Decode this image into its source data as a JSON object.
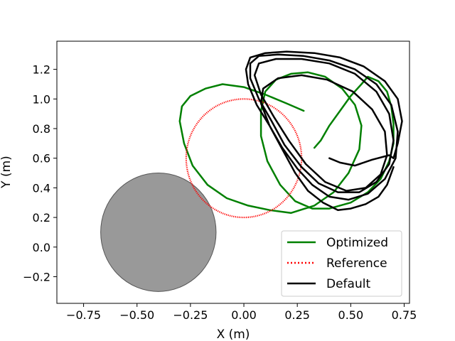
{
  "chart_data": {
    "type": "line",
    "xlabel": "X (m)",
    "ylabel": "Y (m)",
    "xlim": [
      -0.875,
      0.775
    ],
    "ylim": [
      -0.38,
      1.39
    ],
    "x_ticks": [
      -0.75,
      -0.5,
      -0.25,
      0.0,
      0.25,
      0.5,
      0.75
    ],
    "x_tick_labels": [
      "−0.75",
      "−0.50",
      "−0.25",
      "0.00",
      "0.25",
      "0.50",
      "0.75"
    ],
    "y_ticks": [
      -0.2,
      0.0,
      0.2,
      0.4,
      0.6,
      0.8,
      1.0,
      1.2
    ],
    "y_tick_labels": [
      "−0.2",
      "0.0",
      "0.2",
      "0.4",
      "0.6",
      "0.8",
      "1.0",
      "1.2"
    ],
    "grid": false,
    "legend_position": "lower-right",
    "obstacle": {
      "type": "ellipse",
      "center": [
        -0.4,
        0.1
      ],
      "radius_x": 0.27,
      "radius_y": 0.4,
      "color": "#999999"
    },
    "series": [
      {
        "name": "Optimized",
        "color": "#008000",
        "style": "solid",
        "points": [
          [
            0.33,
            0.67
          ],
          [
            0.36,
            0.72
          ],
          [
            0.4,
            0.82
          ],
          [
            0.45,
            0.92
          ],
          [
            0.5,
            1.02
          ],
          [
            0.55,
            1.1
          ],
          [
            0.58,
            1.15
          ],
          [
            0.63,
            1.12
          ],
          [
            0.67,
            1.05
          ],
          [
            0.69,
            0.95
          ],
          [
            0.7,
            0.83
          ],
          [
            0.7,
            0.7
          ],
          [
            0.68,
            0.58
          ],
          [
            0.64,
            0.46
          ],
          [
            0.58,
            0.37
          ],
          [
            0.5,
            0.3
          ],
          [
            0.4,
            0.26
          ],
          [
            0.32,
            0.26
          ],
          [
            0.24,
            0.31
          ],
          [
            0.17,
            0.42
          ],
          [
            0.11,
            0.58
          ],
          [
            0.08,
            0.75
          ],
          [
            0.08,
            0.92
          ],
          [
            0.1,
            1.05
          ],
          [
            0.15,
            1.13
          ],
          [
            0.22,
            1.17
          ],
          [
            0.3,
            1.18
          ],
          [
            0.38,
            1.15
          ],
          [
            0.46,
            1.07
          ],
          [
            0.52,
            0.96
          ],
          [
            0.55,
            0.82
          ],
          [
            0.54,
            0.66
          ],
          [
            0.49,
            0.5
          ],
          [
            0.42,
            0.37
          ],
          [
            0.33,
            0.28
          ],
          [
            0.22,
            0.23
          ],
          [
            0.12,
            0.25
          ],
          [
            0.02,
            0.28
          ],
          [
            -0.08,
            0.33
          ],
          [
            -0.17,
            0.42
          ],
          [
            -0.24,
            0.55
          ],
          [
            -0.28,
            0.7
          ],
          [
            -0.3,
            0.85
          ],
          [
            -0.29,
            0.95
          ],
          [
            -0.25,
            1.02
          ],
          [
            -0.18,
            1.07
          ],
          [
            -0.1,
            1.1
          ],
          [
            0.0,
            1.08
          ],
          [
            0.1,
            1.03
          ],
          [
            0.2,
            0.97
          ],
          [
            0.28,
            0.92
          ]
        ]
      },
      {
        "name": "Reference",
        "color": "#ff0000",
        "style": "dotted",
        "circle": {
          "center": [
            0.0,
            0.6
          ],
          "radius_x": 0.27,
          "radius_y": 0.4
        }
      },
      {
        "name": "Default",
        "color": "#000000",
        "style": "solid",
        "points": [
          [
            0.4,
            0.6
          ],
          [
            0.45,
            0.57
          ],
          [
            0.52,
            0.55
          ],
          [
            0.6,
            0.59
          ],
          [
            0.68,
            0.62
          ],
          [
            0.7,
            0.6
          ],
          [
            0.72,
            0.7
          ],
          [
            0.74,
            0.85
          ],
          [
            0.72,
            1.0
          ],
          [
            0.66,
            1.12
          ],
          [
            0.56,
            1.22
          ],
          [
            0.45,
            1.28
          ],
          [
            0.33,
            1.31
          ],
          [
            0.2,
            1.32
          ],
          [
            0.1,
            1.31
          ],
          [
            0.03,
            1.28
          ],
          [
            0.01,
            1.2
          ],
          [
            0.02,
            1.1
          ],
          [
            0.06,
            0.96
          ],
          [
            0.12,
            0.82
          ],
          [
            0.18,
            0.67
          ],
          [
            0.25,
            0.53
          ],
          [
            0.32,
            0.42
          ],
          [
            0.4,
            0.34
          ],
          [
            0.49,
            0.32
          ],
          [
            0.58,
            0.36
          ],
          [
            0.66,
            0.46
          ],
          [
            0.71,
            0.6
          ],
          [
            0.72,
            0.78
          ],
          [
            0.69,
            0.96
          ],
          [
            0.62,
            1.1
          ],
          [
            0.52,
            1.2
          ],
          [
            0.4,
            1.26
          ],
          [
            0.28,
            1.29
          ],
          [
            0.16,
            1.3
          ],
          [
            0.07,
            1.29
          ],
          [
            0.03,
            1.24
          ],
          [
            0.03,
            1.14
          ],
          [
            0.07,
            1.0
          ],
          [
            0.13,
            0.85
          ],
          [
            0.19,
            0.69
          ],
          [
            0.27,
            0.54
          ],
          [
            0.35,
            0.43
          ],
          [
            0.44,
            0.37
          ],
          [
            0.54,
            0.37
          ],
          [
            0.62,
            0.44
          ],
          [
            0.68,
            0.56
          ],
          [
            0.7,
            0.72
          ],
          [
            0.68,
            0.9
          ],
          [
            0.62,
            1.05
          ],
          [
            0.52,
            1.17
          ],
          [
            0.4,
            1.24
          ],
          [
            0.27,
            1.27
          ],
          [
            0.15,
            1.27
          ],
          [
            0.07,
            1.24
          ],
          [
            0.05,
            1.16
          ],
          [
            0.08,
            1.03
          ],
          [
            0.14,
            0.88
          ],
          [
            0.21,
            0.72
          ],
          [
            0.29,
            0.56
          ],
          [
            0.38,
            0.44
          ],
          [
            0.48,
            0.38
          ],
          [
            0.57,
            0.4
          ],
          [
            0.64,
            0.49
          ],
          [
            0.67,
            0.62
          ],
          [
            0.66,
            0.78
          ],
          [
            0.6,
            0.93
          ],
          [
            0.51,
            1.05
          ],
          [
            0.39,
            1.13
          ],
          [
            0.27,
            1.16
          ],
          [
            0.16,
            1.14
          ],
          [
            0.09,
            1.07
          ],
          [
            0.08,
            0.97
          ],
          [
            0.12,
            0.82
          ],
          [
            0.18,
            0.66
          ],
          [
            0.24,
            0.5
          ],
          [
            0.3,
            0.38
          ],
          [
            0.37,
            0.3
          ],
          [
            0.44,
            0.25
          ],
          [
            0.5,
            0.26
          ],
          [
            0.57,
            0.29
          ],
          [
            0.63,
            0.34
          ],
          [
            0.67,
            0.42
          ],
          [
            0.7,
            0.54
          ]
        ]
      }
    ]
  }
}
